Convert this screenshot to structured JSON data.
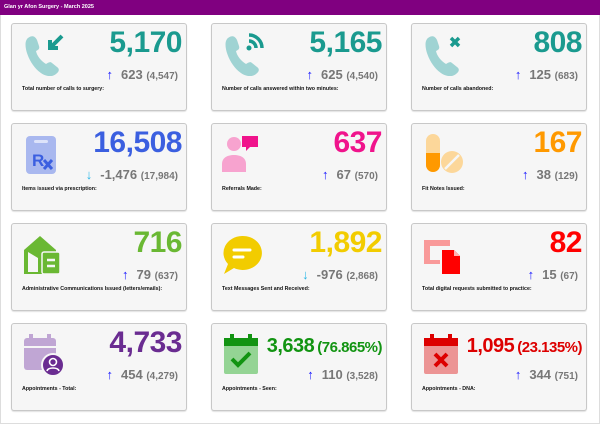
{
  "header": {
    "title": "Glan yr Afon Surgery - March 2025"
  },
  "colors": {
    "header_bg": "#800080",
    "arrow_up": "#1a1aff",
    "arrow_down": "#29b6e6"
  },
  "cards": [
    {
      "value": "5,170",
      "change": "623",
      "previous": "(4,547)",
      "direction": "up",
      "label": "Total number of calls to surgery:",
      "color": "#1a9a8f",
      "icon": "phone-incoming-icon"
    },
    {
      "value": "5,165",
      "change": "625",
      "previous": "(4,540)",
      "direction": "up",
      "label": "Number of calls answered within two minutes:",
      "color": "#1a9a8f",
      "icon": "phone-signal-icon"
    },
    {
      "value": "808",
      "change": "125",
      "previous": "(683)",
      "direction": "up",
      "label": "Number of calls abandoned:",
      "color": "#1a9a8f",
      "icon": "phone-missed-icon"
    },
    {
      "value": "16,508",
      "change": "-1,476",
      "previous": "(17,984)",
      "direction": "down",
      "label": "Items issued via prescription:",
      "color": "#3b5fe0",
      "icon": "prescription-icon"
    },
    {
      "value": "637",
      "change": "67",
      "previous": "(570)",
      "direction": "up",
      "label": "Referrals Made:",
      "color": "#f0148c",
      "icon": "doctor-chat-icon"
    },
    {
      "value": "167",
      "change": "38",
      "previous": "(129)",
      "direction": "up",
      "label": "Fit Notes Issued:",
      "color": "#ff9900",
      "icon": "pills-icon"
    },
    {
      "value": "716",
      "change": "79",
      "previous": "(637)",
      "direction": "up",
      "label": "Administrative Communications Issued (letters/emails):",
      "color": "#6ab833",
      "icon": "mailbox-house-icon"
    },
    {
      "value": "1,892",
      "change": "-976",
      "previous": "(2,868)",
      "direction": "down",
      "label": "Text Messages Sent and Received:",
      "color": "#f2cc00",
      "icon": "message-bubble-icon"
    },
    {
      "value": "82",
      "change": "15",
      "previous": "(67)",
      "direction": "up",
      "label": "Total digital requests submitted to practice:",
      "color": "#ff0000",
      "icon": "digital-document-icon"
    },
    {
      "value": "4,733",
      "change": "454",
      "previous": "(4,279)",
      "direction": "up",
      "label": "Appointments - Total:",
      "color": "#6a2c91",
      "icon": "calendar-user-icon"
    },
    {
      "value": "3,638",
      "percent": "(76.865%)",
      "change": "110",
      "previous": "(3,528)",
      "direction": "up",
      "label": "Appointments - Seen:",
      "color": "#129412",
      "icon": "calendar-check-icon"
    },
    {
      "value": "1,095",
      "percent": "(23.135%)",
      "change": "344",
      "previous": "(751)",
      "direction": "up",
      "label": "Appointments - DNA:",
      "color": "#dd0000",
      "icon": "calendar-cross-icon"
    }
  ]
}
